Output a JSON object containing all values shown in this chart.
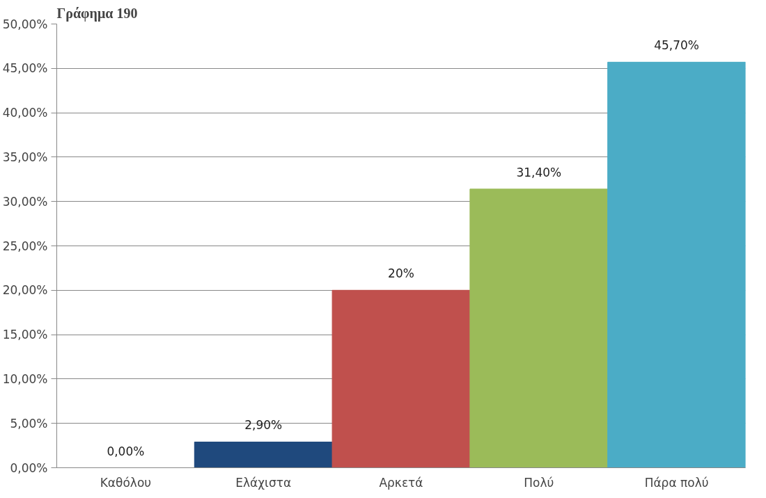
{
  "chart_data": {
    "type": "bar",
    "title": "Γράφημα 190",
    "categories": [
      "Καθόλου",
      "Ελάχιστα",
      "Αρκετά",
      "Πολύ",
      "Πάρα πολύ"
    ],
    "values": [
      0,
      2.9,
      20,
      31.4,
      45.7
    ],
    "colors": [
      "#1f497d",
      "#1f497d",
      "#c0504d",
      "#9bbb59",
      "#4bacc6"
    ],
    "value_labels": [
      "0,00%",
      "2,90%",
      "20%",
      "31,40%",
      "45,70%"
    ],
    "ylim": [
      0,
      50
    ],
    "yticks": [
      {
        "value": 0,
        "label": "0,00%"
      },
      {
        "value": 5,
        "label": "5,00%"
      },
      {
        "value": 10,
        "label": "10,00%"
      },
      {
        "value": 15,
        "label": "15,00%"
      },
      {
        "value": 20,
        "label": "20,00%"
      },
      {
        "value": 25,
        "label": "25,00%"
      },
      {
        "value": 30,
        "label": "30,00%"
      },
      {
        "value": 35,
        "label": "35,00%"
      },
      {
        "value": 40,
        "label": "40,00%"
      },
      {
        "value": 45,
        "label": "45,00%"
      },
      {
        "value": 50,
        "label": "50,00%"
      }
    ],
    "grid": "y"
  }
}
